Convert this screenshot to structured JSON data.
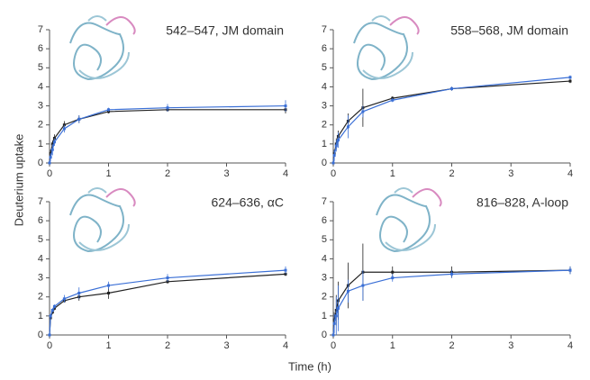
{
  "ylabel": "Deuterium uptake",
  "xlabel": "Time (h)",
  "chart_data": [
    {
      "type": "line",
      "title": "542–547, JM domain",
      "x": [
        0,
        0.017,
        0.05,
        0.083,
        0.25,
        0.5,
        1,
        2,
        4
      ],
      "series": [
        {
          "color": "#222222",
          "values": [
            0,
            0.5,
            1.0,
            1.3,
            2.0,
            2.3,
            2.7,
            2.8,
            2.8
          ],
          "errors": [
            0,
            0.2,
            0.2,
            0.2,
            0.2,
            0.2,
            0.1,
            0.1,
            0.2
          ]
        },
        {
          "color": "#3a6fd6",
          "values": [
            0,
            0.3,
            0.7,
            1.1,
            1.8,
            2.3,
            2.8,
            2.9,
            3.0
          ],
          "errors": [
            0,
            0.2,
            0.3,
            0.2,
            0.2,
            0.2,
            0.1,
            0.2,
            0.3
          ]
        }
      ],
      "xlim": [
        0,
        4
      ],
      "xticks": [
        0,
        1,
        2,
        3,
        4
      ],
      "ylim": [
        0,
        7
      ],
      "yticks": [
        0,
        1,
        2,
        3,
        4,
        5,
        6,
        7
      ]
    },
    {
      "type": "line",
      "title": "558–568, JM domain",
      "x": [
        0,
        0.017,
        0.05,
        0.083,
        0.25,
        0.5,
        1,
        2,
        4
      ],
      "series": [
        {
          "color": "#222222",
          "values": [
            0,
            0.5,
            1.0,
            1.4,
            2.2,
            2.9,
            3.4,
            3.9,
            4.3
          ],
          "errors": [
            0,
            0.2,
            0.3,
            0.3,
            0.4,
            1.0,
            0.1,
            0.1,
            0.1
          ]
        },
        {
          "color": "#3a6fd6",
          "values": [
            0,
            0.4,
            0.9,
            1.2,
            1.9,
            2.7,
            3.3,
            3.9,
            4.5
          ],
          "errors": [
            0,
            0.3,
            0.3,
            0.4,
            0.6,
            0.3,
            0.1,
            0.1,
            0.1
          ]
        }
      ],
      "xlim": [
        0,
        4
      ],
      "xticks": [
        0,
        1,
        2,
        3,
        4
      ],
      "ylim": [
        0,
        7
      ],
      "yticks": [
        0,
        1,
        2,
        3,
        4,
        5,
        6,
        7
      ]
    },
    {
      "type": "line",
      "title": "624–636, αC",
      "x": [
        0,
        0.017,
        0.05,
        0.083,
        0.25,
        0.5,
        1,
        2,
        4
      ],
      "series": [
        {
          "color": "#222222",
          "values": [
            0,
            0.9,
            1.2,
            1.4,
            1.8,
            2.0,
            2.2,
            2.8,
            3.2
          ],
          "errors": [
            0,
            0.1,
            0.1,
            0.1,
            0.1,
            0.2,
            0.3,
            0.1,
            0.1
          ]
        },
        {
          "color": "#3a6fd6",
          "values": [
            0,
            1.0,
            1.3,
            1.5,
            1.9,
            2.2,
            2.6,
            3.0,
            3.4
          ],
          "errors": [
            0,
            0.1,
            0.1,
            0.1,
            0.2,
            0.3,
            0.2,
            0.2,
            0.2
          ]
        }
      ],
      "xlim": [
        0,
        4
      ],
      "xticks": [
        0,
        1,
        2,
        3,
        4
      ],
      "ylim": [
        0,
        7
      ],
      "yticks": [
        0,
        1,
        2,
        3,
        4,
        5,
        6,
        7
      ]
    },
    {
      "type": "line",
      "title": "816–828, A-loop",
      "x": [
        0,
        0.017,
        0.05,
        0.083,
        0.25,
        0.5,
        1,
        2,
        4
      ],
      "series": [
        {
          "color": "#222222",
          "values": [
            0,
            0.8,
            1.3,
            1.8,
            2.6,
            3.3,
            3.3,
            3.3,
            3.4
          ],
          "errors": [
            0,
            0.4,
            0.8,
            1.0,
            1.2,
            1.5,
            0.3,
            0.3,
            0.2
          ]
        },
        {
          "color": "#3a6fd6",
          "values": [
            0,
            0.6,
            1.0,
            1.4,
            2.3,
            2.6,
            3.0,
            3.2,
            3.4
          ],
          "errors": [
            0,
            0.5,
            1.0,
            1.2,
            0.6,
            0.8,
            0.2,
            0.2,
            0.2
          ]
        }
      ],
      "xlim": [
        0,
        4
      ],
      "xticks": [
        0,
        1,
        2,
        3,
        4
      ],
      "ylim": [
        0,
        7
      ],
      "yticks": [
        0,
        1,
        2,
        3,
        4,
        5,
        6,
        7
      ]
    }
  ]
}
